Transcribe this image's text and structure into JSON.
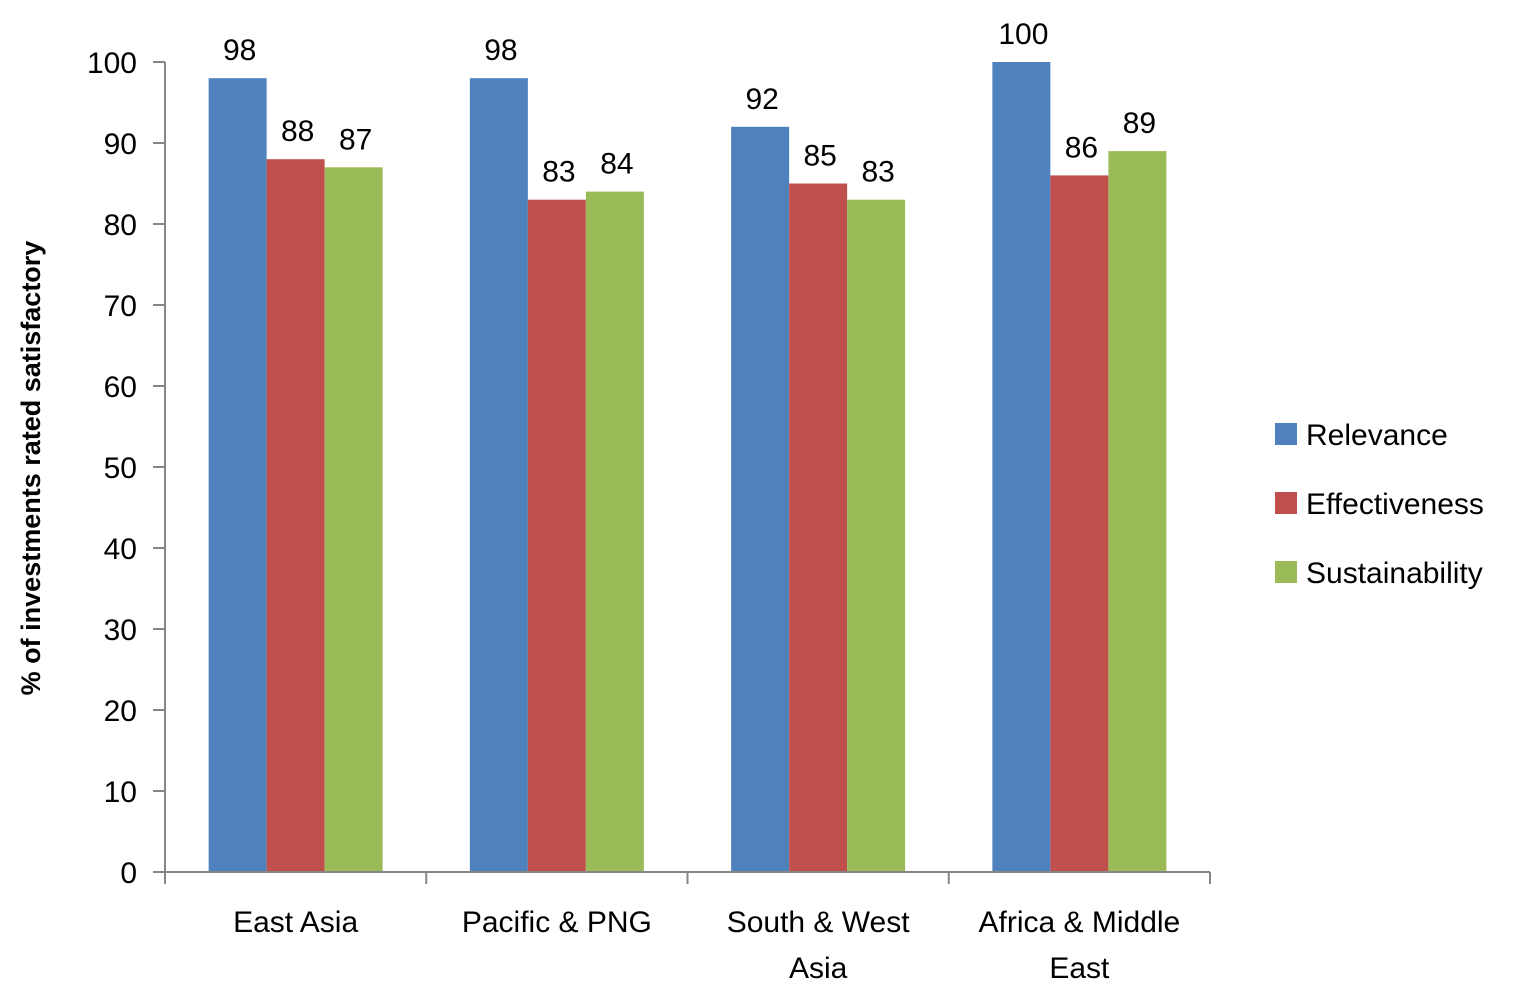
{
  "chart_data": {
    "type": "bar",
    "title": "",
    "xlabel": "",
    "ylabel": "% of investments rated satisfactory",
    "ylim": [
      0,
      100
    ],
    "yticks": [
      0,
      10,
      20,
      30,
      40,
      50,
      60,
      70,
      80,
      90,
      100
    ],
    "grid": false,
    "legend_position": "right",
    "categories": [
      [
        "East Asia"
      ],
      [
        "Pacific & PNG"
      ],
      [
        "South & West",
        "Asia"
      ],
      [
        "Africa & Middle",
        "East"
      ]
    ],
    "series": [
      {
        "name": "Relevance",
        "color": "#4F81BD",
        "values": [
          98,
          98,
          92,
          100
        ]
      },
      {
        "name": "Effectiveness",
        "color": "#C0504D",
        "values": [
          88,
          83,
          85,
          86
        ]
      },
      {
        "name": "Sustainability",
        "color": "#9BBB59",
        "values": [
          87,
          84,
          83,
          89
        ]
      }
    ]
  }
}
